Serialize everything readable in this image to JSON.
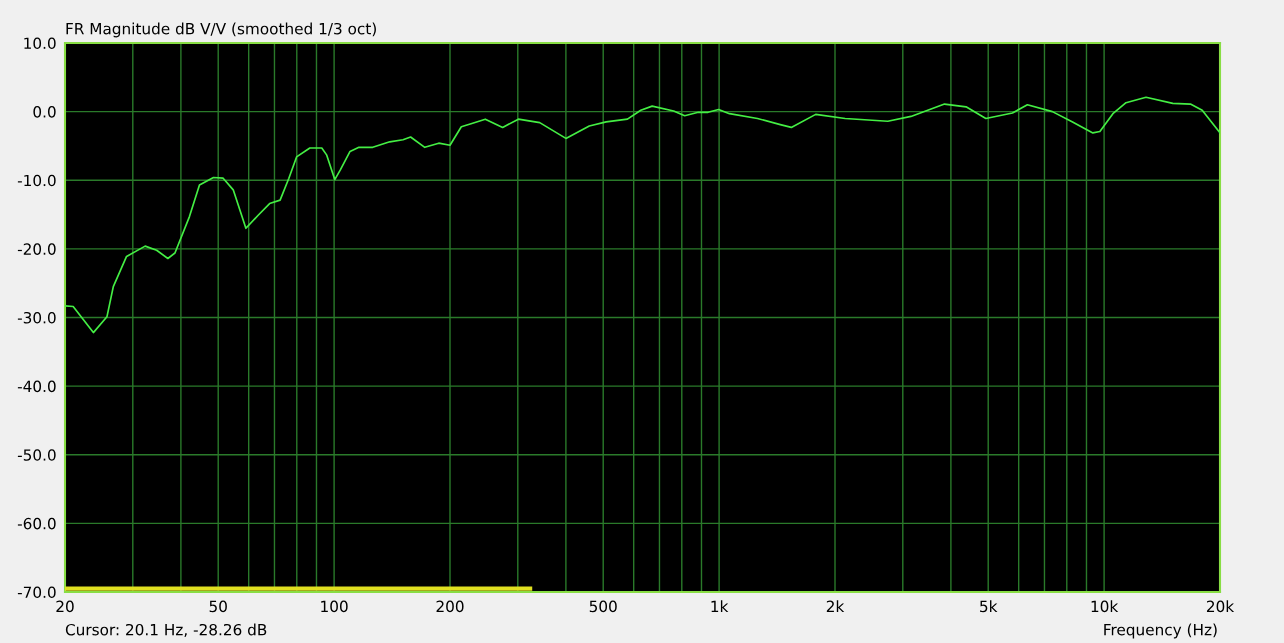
{
  "chart_data": {
    "type": "line",
    "title": "FR Magnitude dB V/V (smoothed 1/3 oct)",
    "xlabel": "Frequency (Hz)",
    "annotations": [
      "Cursor: 20.1 Hz, -28.26 dB"
    ],
    "log": "x",
    "grid": true,
    "marker": "none",
    "line_style": "solid",
    "xlim": [
      20,
      20000
    ],
    "xticks": [
      20,
      {
        "value": 30,
        "label": null
      },
      {
        "value": 40,
        "label": null
      },
      50,
      {
        "value": 60,
        "label": null
      },
      {
        "value": 70,
        "label": null
      },
      {
        "value": 80,
        "label": null
      },
      {
        "value": 90,
        "label": null
      },
      100,
      200,
      {
        "value": 300,
        "label": null
      },
      {
        "value": 400,
        "label": null
      },
      500,
      {
        "value": 600,
        "label": null
      },
      {
        "value": 700,
        "label": null
      },
      {
        "value": 800,
        "label": null
      },
      {
        "value": 900,
        "label": null
      },
      {
        "value": 1000,
        "label": "1k"
      },
      {
        "value": 2000,
        "label": "2k"
      },
      {
        "value": 3000,
        "label": null
      },
      {
        "value": 4000,
        "label": null
      },
      {
        "value": 5000,
        "label": "5k"
      },
      {
        "value": 6000,
        "label": null
      },
      {
        "value": 7000,
        "label": null
      },
      {
        "value": 8000,
        "label": null
      },
      {
        "value": 9000,
        "label": null
      },
      {
        "value": 10000,
        "label": "10k"
      },
      {
        "value": 20000,
        "label": "20k"
      }
    ],
    "ylim": [
      -70,
      10
    ],
    "yticks": [
      {
        "value": -70,
        "label": "-70.0"
      },
      {
        "value": -60,
        "label": "-60.0"
      },
      {
        "value": -50,
        "label": "-50.0"
      },
      {
        "value": -40,
        "label": "-40.0"
      },
      {
        "value": -30,
        "label": "-30.0"
      },
      {
        "value": -20,
        "label": "-20.0"
      },
      {
        "value": -10,
        "label": "-10.0"
      },
      {
        "value": 0,
        "label": "0.0"
      },
      {
        "value": 10,
        "label": "10.0"
      }
    ],
    "series": [
      {
        "color": "#44ee44",
        "x": [
          20,
          21,
          23.7,
          25.7,
          26.7,
          28.9,
          32.3,
          34.6,
          37,
          38.6,
          42.1,
          44.7,
          48.6,
          51.5,
          54.7,
          59,
          63.5,
          68,
          72.4,
          76.3,
          79.9,
          86.5,
          92.9,
          95.6,
          100.4,
          103.8,
          110,
          116,
          126,
          139.5,
          151,
          158,
          172,
          187,
          200,
          214,
          229,
          247,
          274,
          301,
          342,
          400,
          460,
          509,
          578,
          626,
          670,
          762,
          814,
          883,
          936,
          997,
          1064,
          1258,
          1442,
          1540,
          1782,
          2125,
          2742,
          3150,
          3850,
          4380,
          4930,
          5780,
          6320,
          7340,
          8280,
          9350,
          9750,
          10540,
          11400,
          12850,
          15080,
          16760,
          17980,
          20000
        ],
        "values": [
          -28.3,
          -28.4,
          -32.2,
          -29.9,
          -25.5,
          -21.1,
          -19.6,
          -20.2,
          -21.4,
          -20.6,
          -15.3,
          -10.7,
          -9.6,
          -9.7,
          -11.4,
          -17.0,
          -15.1,
          -13.4,
          -12.9,
          -9.7,
          -6.6,
          -5.3,
          -5.3,
          -6.3,
          -9.9,
          -8.5,
          -5.8,
          -5.2,
          -5.2,
          -4.4,
          -4.1,
          -3.7,
          -5.2,
          -4.6,
          -4.9,
          -2.2,
          -1.7,
          -1.1,
          -2.3,
          -1.1,
          -1.6,
          -3.9,
          -2.1,
          -1.5,
          -1.1,
          0.2,
          0.8,
          0.1,
          -0.6,
          -0.1,
          -0.1,
          0.3,
          -0.3,
          -1.0,
          -1.9,
          -2.3,
          -0.4,
          -1.0,
          -1.4,
          -0.7,
          1.1,
          0.7,
          -1.0,
          -0.2,
          1.0,
          0.0,
          -1.5,
          -3.1,
          -2.9,
          -0.3,
          1.3,
          2.1,
          1.2,
          1.1,
          0.2,
          -3.1
        ]
      },
      {
        "color": "#e0e020",
        "x": [
          20,
          323
        ],
        "values": [
          -69.5,
          -69.5
        ]
      }
    ]
  }
}
